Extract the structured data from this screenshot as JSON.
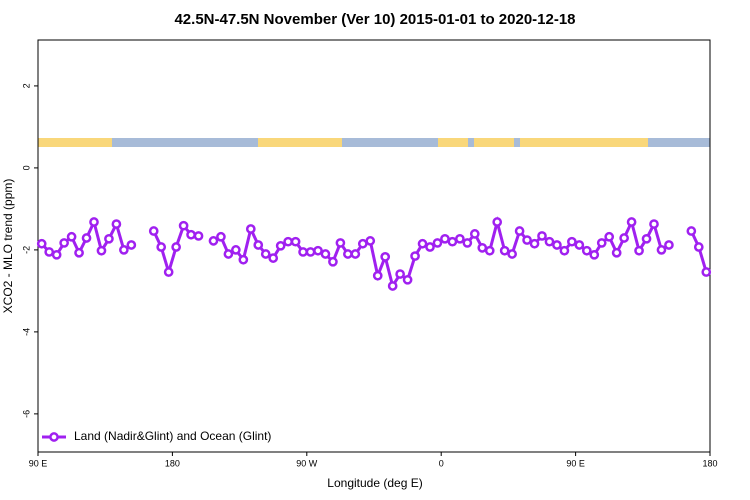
{
  "chart_data": {
    "type": "line",
    "title": "42.5N-47.5N November (Ver 10)   2015-01-01 to 2020-12-18",
    "x_label": "Longitude (deg E)",
    "y_label": "XCO2 - MLO trend (ppm)",
    "xlim": [
      90,
      540
    ],
    "xticks": [
      {
        "value": 90,
        "label": "90 E"
      },
      180,
      {
        "value": 270,
        "label": "90 W"
      },
      {
        "value": 360,
        "label": "0"
      },
      {
        "value": 450,
        "label": "90 E"
      },
      {
        "value": 540,
        "label": "180"
      }
    ],
    "ylim": [
      -6.93,
      3.12
    ],
    "yticks": [
      2,
      0,
      -2,
      -4,
      -6
    ],
    "legend": "bottom-left",
    "x": [
      92.5,
      97.5,
      102.5,
      107.5,
      112.5,
      117.5,
      122.5,
      127.5,
      132.5,
      137.5,
      142.5,
      147.5,
      152.5,
      157.5,
      162.5,
      167.5,
      172.5,
      177.5,
      182.5,
      187.5,
      192.5,
      197.5,
      202.5,
      207.5,
      212.5,
      217.5,
      222.5,
      227.5,
      232.5,
      237.5,
      242.5,
      247.5,
      252.5,
      257.5,
      262.5,
      267.5,
      272.5,
      277.5,
      282.5,
      287.5,
      292.5,
      297.5,
      302.5,
      307.5,
      312.5,
      317.5,
      322.5,
      327.5,
      332.5,
      337.5,
      342.5,
      347.5,
      352.5,
      357.5,
      362.5,
      367.5,
      372.5,
      377.5,
      382.5,
      387.5,
      392.5,
      397.5,
      402.5,
      407.5,
      412.5,
      417.5,
      422.5,
      427.5,
      432.5,
      437.5,
      442.5,
      447.5,
      452.5,
      457.5,
      462.5,
      467.5,
      472.5,
      477.5,
      482.5,
      487.5,
      492.5,
      497.5,
      502.5,
      507.5,
      512.5,
      517.5,
      522.5,
      527.5,
      532.5,
      537.5
    ],
    "series": [
      {
        "name": "Land (Nadir&Glint) and Ocean (Glint)",
        "color": "#a020f0",
        "values": [
          -1.85,
          -2.05,
          -2.12,
          -1.83,
          -1.68,
          -2.07,
          -1.71,
          -1.32,
          -2.02,
          -1.73,
          -1.37,
          -2.0,
          -1.88,
          null,
          null,
          -1.54,
          -1.93,
          -2.54,
          -1.93,
          -1.41,
          -1.63,
          -1.66,
          null,
          -1.78,
          -1.68,
          -2.1,
          -2.0,
          -2.24,
          -1.49,
          -1.88,
          -2.1,
          -2.2,
          -1.9,
          -1.8,
          -1.8,
          -2.05,
          -2.05,
          -2.02,
          -2.1,
          -2.29,
          -1.83,
          -2.1,
          -2.1,
          -1.85,
          -1.78,
          -2.63,
          -2.17,
          -2.88,
          -2.59,
          -2.73,
          -2.15,
          -1.85,
          -1.93,
          -1.83,
          -1.73,
          -1.8,
          -1.73,
          -1.83,
          -1.61,
          -1.95,
          -2.02,
          -1.32,
          -2.02,
          -2.1,
          -1.54,
          -1.76,
          -1.85,
          -1.66,
          -1.8,
          -1.88,
          -2.02,
          -1.8,
          -1.88,
          -2.02,
          -2.12,
          -1.83,
          -1.68,
          -2.07,
          -1.71,
          -1.32,
          -2.02,
          -1.73,
          -1.37,
          -2.0,
          -1.88,
          null,
          null,
          -1.54,
          -1.93,
          -2.54
        ]
      }
    ]
  }
}
